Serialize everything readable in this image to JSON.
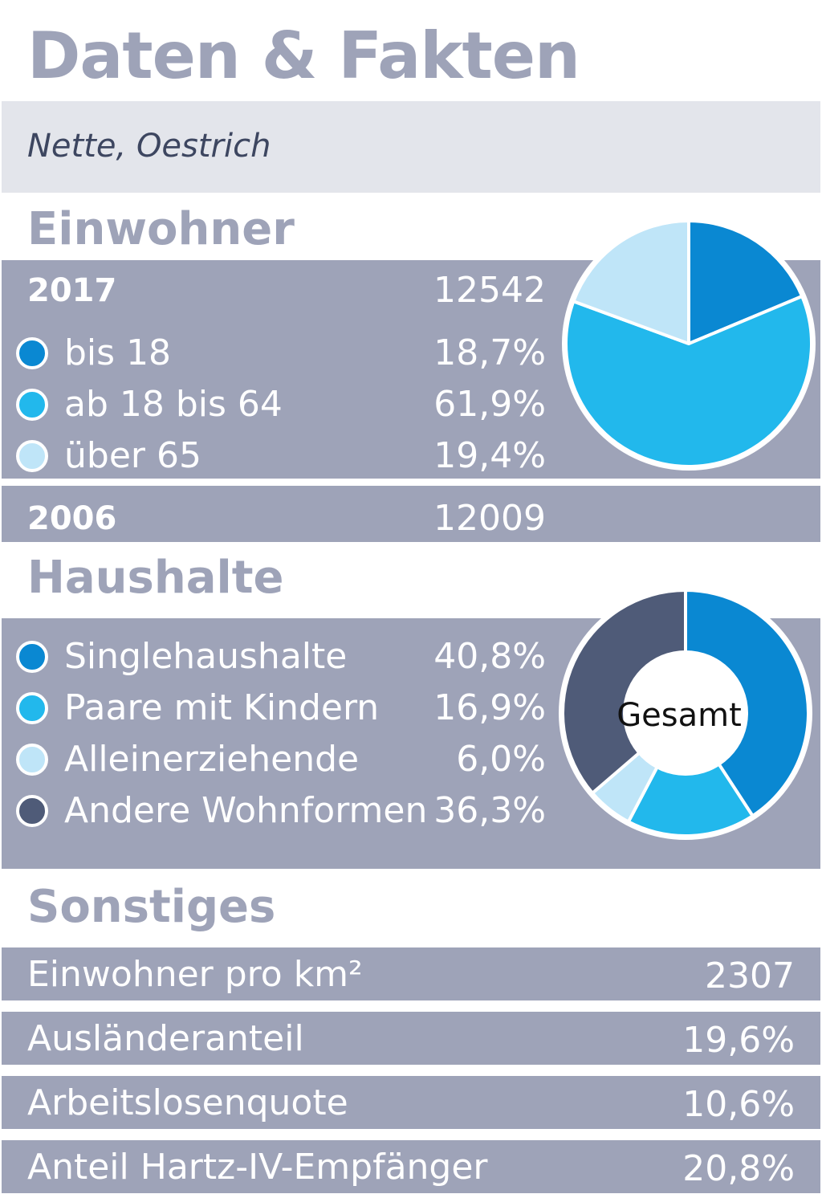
{
  "header": {
    "title": "Daten & Fakten",
    "subtitle": "Nette, Oestrich"
  },
  "einwohner": {
    "heading": "Einwohner",
    "year_2017": {
      "label": "2017",
      "value": "12542"
    },
    "year_2006": {
      "label": "2006",
      "value": "12009"
    }
  },
  "haushalte": {
    "heading": "Haushalte",
    "center_label": "Gesamt"
  },
  "sonstiges": {
    "heading": "Sonstiges",
    "rows": [
      {
        "label": "Einwohner pro km²",
        "value": "2307"
      },
      {
        "label": "Ausländeranteil",
        "value": "19,6%"
      },
      {
        "label": "Arbeitslosenquote",
        "value": "10,6%"
      },
      {
        "label": "Anteil Hartz-IV-Empfänger",
        "value": "20,8%"
      }
    ]
  },
  "chart_data": [
    {
      "type": "pie",
      "categories": [
        "bis 18",
        "ab 18 bis 64",
        "über 65"
      ],
      "values": [
        18.7,
        61.9,
        19.4
      ],
      "value_labels": [
        "18,7%",
        "61,9%",
        "19,4%"
      ],
      "colors": [
        "#0a88d2",
        "#22b8ec",
        "#bfe5f8"
      ]
    },
    {
      "type": "pie",
      "categories": [
        "Singlehaushalte",
        "Paare mit Kindern",
        "Alleinerziehende",
        "Andere Wohnformen"
      ],
      "values": [
        40.8,
        16.9,
        6.0,
        36.3
      ],
      "value_labels": [
        "40,8%",
        "16,9%",
        "6,0%",
        "36,3%"
      ],
      "colors": [
        "#0a88d2",
        "#22b8ec",
        "#bfe5f8",
        "#4f5b78"
      ]
    }
  ]
}
